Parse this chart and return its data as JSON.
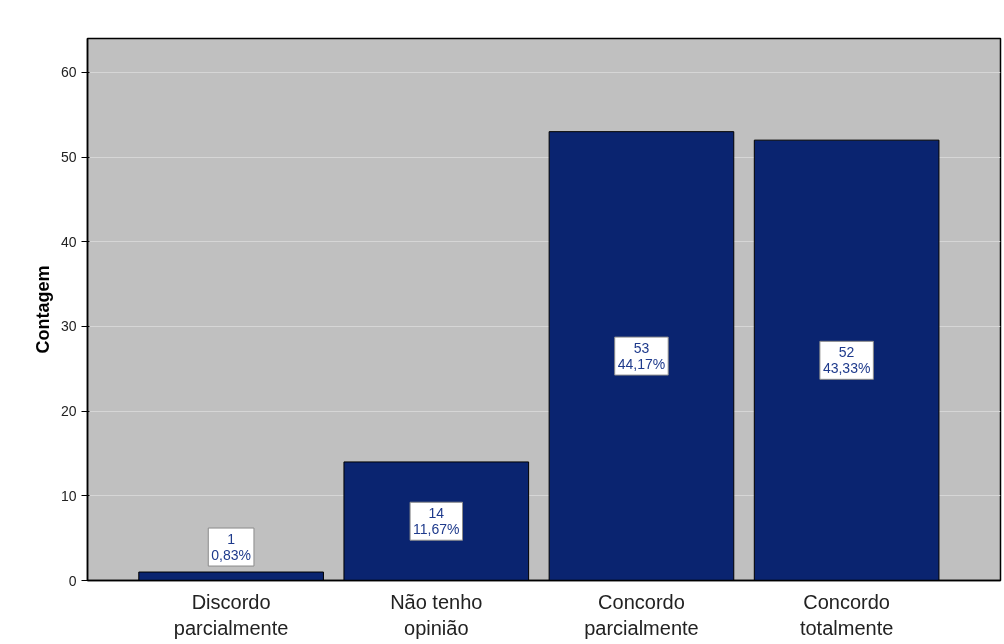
{
  "chart_data": {
    "type": "bar",
    "ylabel": "Contagem",
    "categories": [
      "Discordo parcialmente",
      "Não tenho opinião",
      "Concordo parcialmente",
      "Concordo totalmente"
    ],
    "values": [
      1,
      14,
      53,
      52
    ],
    "color": "#0a2470",
    "value_labels": [
      "1\n0,83%",
      "14\n11,67%",
      "53\n44,17%",
      "52\n43,33%"
    ],
    "ylim": [
      0,
      64
    ],
    "yticks": [
      0,
      10,
      20,
      30,
      40,
      50,
      60
    ],
    "grid": "y"
  }
}
